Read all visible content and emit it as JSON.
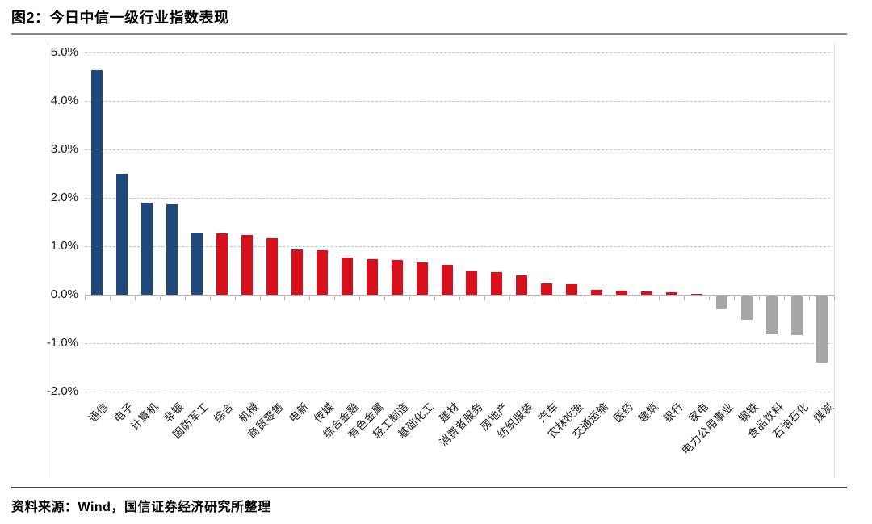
{
  "figure": {
    "title": "图2：今日中信一级行业指数表现",
    "source": "资料来源：Wind，国信证券经济研究所整理"
  },
  "chart_data": {
    "type": "bar",
    "title": "图2：今日中信一级行业指数表现",
    "categories": [
      "通信",
      "电子",
      "计算机",
      "非银",
      "国防军工",
      "综合",
      "机械",
      "商贸零售",
      "电新",
      "传媒",
      "综合金融",
      "有色金属",
      "轻工制造",
      "基础化工",
      "建材",
      "消费者服务",
      "房地产",
      "纺织服装",
      "汽车",
      "农林牧渔",
      "交通运输",
      "医药",
      "建筑",
      "银行",
      "家电",
      "电力公用事业",
      "钢铁",
      "食品饮料",
      "石油石化",
      "煤炭"
    ],
    "values": [
      4.63,
      2.5,
      1.9,
      1.87,
      1.28,
      1.26,
      1.23,
      1.17,
      0.93,
      0.92,
      0.77,
      0.73,
      0.71,
      0.66,
      0.62,
      0.49,
      0.46,
      0.4,
      0.24,
      0.22,
      0.1,
      0.09,
      0.07,
      0.05,
      0.02,
      -0.28,
      -0.5,
      -0.8,
      -0.81,
      -1.39
    ],
    "unit": "%",
    "ylim": [
      -2.0,
      5.0
    ],
    "ytick_values": [
      5,
      4,
      3,
      2,
      1,
      0,
      -1,
      -2
    ],
    "ytick_labels": [
      "5.0%",
      "4.0%",
      "3.0%",
      "2.0%",
      "1.0%",
      "0.0%",
      "-1.0%",
      "-2.0%"
    ],
    "grid": "horizontal dashed",
    "legend": "none",
    "colors": {
      "blue_top5": "#1F497D",
      "positive_red": "#D8101B",
      "negative_gray": "#A6A6A6"
    },
    "color_rule": "first 5 bars blue, remaining positive bars red, negative bars gray",
    "xlabel": "",
    "ylabel": ""
  }
}
